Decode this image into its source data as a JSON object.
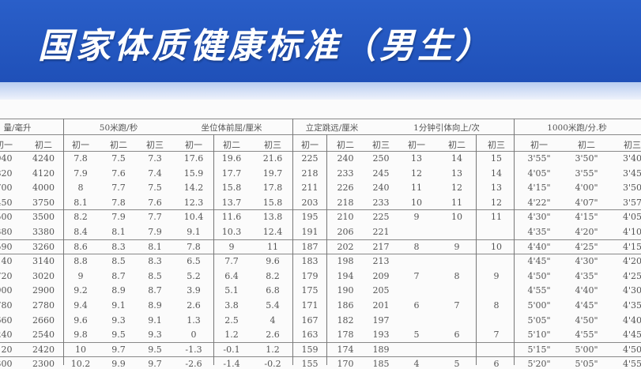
{
  "title": "国家体质健康标准（男生）",
  "groups": [
    "量/毫升",
    "50米跑/秒",
    "坐位体前屈/厘米",
    "立定跳远/厘米",
    "1分钟引体向上/次",
    "1000米跑/分.秒"
  ],
  "subheaders": [
    "初一",
    "初二",
    "初一",
    "初二",
    "初三",
    "初一",
    "初二",
    "初三",
    "初一",
    "初二",
    "初三",
    "初一",
    "初二",
    "初三",
    "初一",
    "初二",
    "初三"
  ],
  "rows": [
    [
      "940",
      "4240",
      "7.8",
      "7.5",
      "7.3",
      "17.6",
      "19.6",
      "21.6",
      "225",
      "240",
      "250",
      "13",
      "14",
      "15",
      "3'55\"",
      "3'50\"",
      "3'40"
    ],
    [
      "820",
      "4120",
      "7.9",
      "7.6",
      "7.4",
      "15.9",
      "17.7",
      "19.7",
      "218",
      "233",
      "245",
      "12",
      "13",
      "14",
      "4'05\"",
      "3'55\"",
      "3'45"
    ],
    [
      "700",
      "4000",
      "8",
      "7.7",
      "7.5",
      "14.2",
      "15.8",
      "17.8",
      "211",
      "226",
      "240",
      "11",
      "12",
      "13",
      "4'15\"",
      "4'00\"",
      "3'50"
    ],
    [
      "450",
      "3750",
      "8.1",
      "7.8",
      "7.6",
      "12.3",
      "13.7",
      "15.8",
      "203",
      "218",
      "233",
      "10",
      "11",
      "12",
      "4'22\"",
      "4'07\"",
      "3'57"
    ],
    [
      "500",
      "3500",
      "8.2",
      "7.9",
      "7.7",
      "10.4",
      "11.6",
      "13.8",
      "195",
      "210",
      "225",
      "9",
      "10",
      "11",
      "4'30\"",
      "4'15\"",
      "4'05"
    ],
    [
      "380",
      "3380",
      "8.4",
      "8.1",
      "7.9",
      "9.1",
      "10.3",
      "12.4",
      "191",
      "206",
      "221",
      "",
      "",
      "",
      "4'35\"",
      "4'20\"",
      "4'10"
    ],
    [
      "590",
      "3260",
      "8.6",
      "8.3",
      "8.1",
      "7.8",
      "9",
      "11",
      "187",
      "202",
      "217",
      "8",
      "9",
      "10",
      "4'40\"",
      "4'25\"",
      "4'15"
    ],
    [
      "140",
      "3140",
      "8.8",
      "8.5",
      "8.3",
      "6.5",
      "7.7",
      "9.6",
      "183",
      "198",
      "213",
      "",
      "",
      "",
      "4'45\"",
      "4'30\"",
      "4'20"
    ],
    [
      "720",
      "3020",
      "9",
      "8.7",
      "8.5",
      "5.2",
      "6.4",
      "8.2",
      "179",
      "194",
      "209",
      "7",
      "8",
      "9",
      "4'50\"",
      "4'35\"",
      "4'25"
    ],
    [
      "900",
      "2900",
      "9.2",
      "8.9",
      "8.7",
      "3.9",
      "5.1",
      "6.8",
      "175",
      "190",
      "205",
      "",
      "",
      "",
      "4'55\"",
      "4'40\"",
      "4'30"
    ],
    [
      "780",
      "2780",
      "9.4",
      "9.1",
      "8.9",
      "2.6",
      "3.8",
      "5.4",
      "171",
      "186",
      "201",
      "6",
      "7",
      "8",
      "5'00\"",
      "4'45\"",
      "4'35"
    ],
    [
      "660",
      "2660",
      "9.6",
      "9.3",
      "9.1",
      "1.3",
      "2.5",
      "4",
      "167",
      "182",
      "197",
      "",
      "",
      "",
      "5'05\"",
      "4'50\"",
      "4'40"
    ],
    [
      "240",
      "2540",
      "9.8",
      "9.5",
      "9.3",
      "0",
      "1.2",
      "2.6",
      "163",
      "178",
      "193",
      "5",
      "6",
      "7",
      "5'10\"",
      "4'55\"",
      "4'45"
    ],
    [
      "120",
      "2420",
      "10",
      "9.7",
      "9.5",
      "-1.3",
      "-0.1",
      "1.2",
      "159",
      "174",
      "189",
      "",
      "",
      "",
      "5'15\"",
      "5'00\"",
      "4'50"
    ],
    [
      "300",
      "2300",
      "10.2",
      "9.9",
      "9.7",
      "-2.6",
      "-1.4",
      "-0.2",
      "155",
      "170",
      "185",
      "4",
      "5",
      "6",
      "5'20\"",
      "5'05\"",
      "4'55"
    ]
  ]
}
